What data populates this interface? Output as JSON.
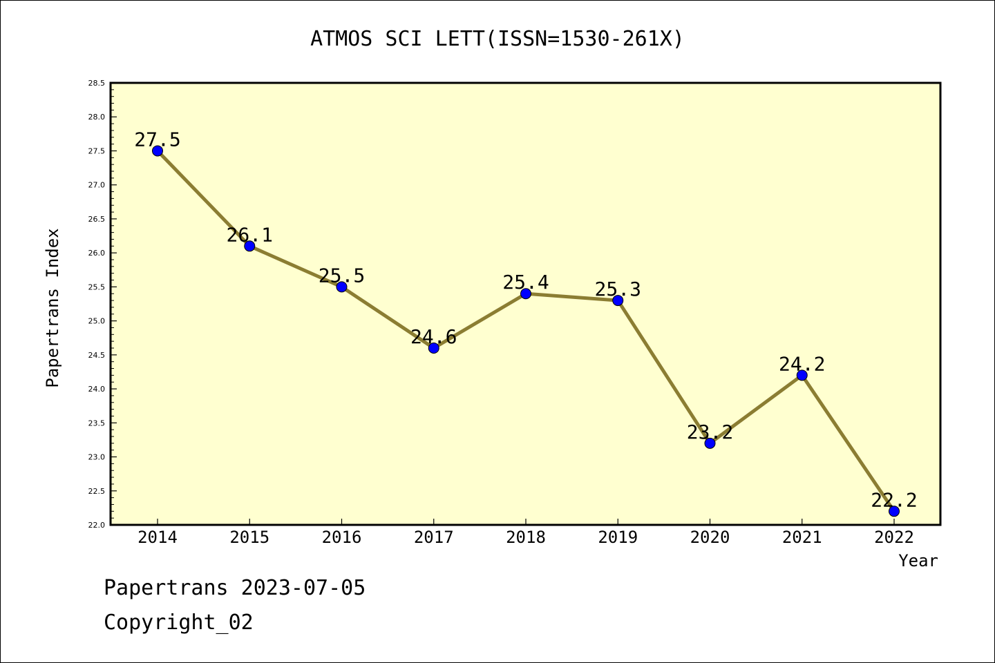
{
  "chart_data": {
    "type": "line",
    "title": "ATMOS SCI LETT(ISSN=1530-261X)",
    "xlabel": "Year",
    "ylabel": "Papertrans Index",
    "categories": [
      "2014",
      "2015",
      "2016",
      "2017",
      "2018",
      "2019",
      "2020",
      "2021",
      "2022"
    ],
    "series": [
      {
        "values": [
          27.5,
          26.1,
          25.5,
          24.6,
          25.4,
          25.3,
          23.2,
          24.2,
          22.2
        ],
        "data_labels": [
          "27.5",
          "26.1",
          "25.5",
          "24.6",
          "25.4",
          "25.3",
          "23.2",
          "24.2",
          "22.2"
        ]
      }
    ],
    "ylim": [
      22.0,
      28.5
    ],
    "yticks": [
      "22.0",
      "22.5",
      "23.0",
      "23.5",
      "24.0",
      "24.5",
      "25.0",
      "25.5",
      "26.0",
      "26.5",
      "27.0",
      "27.5",
      "28.0",
      "28.5"
    ],
    "grid": false,
    "colors": {
      "plot_background": "#ffffd0",
      "line": "#8b7d32",
      "marker": "#0000ff"
    }
  },
  "footer": {
    "line1": "Papertrans 2023-07-05",
    "line2": "Copyright_02"
  }
}
